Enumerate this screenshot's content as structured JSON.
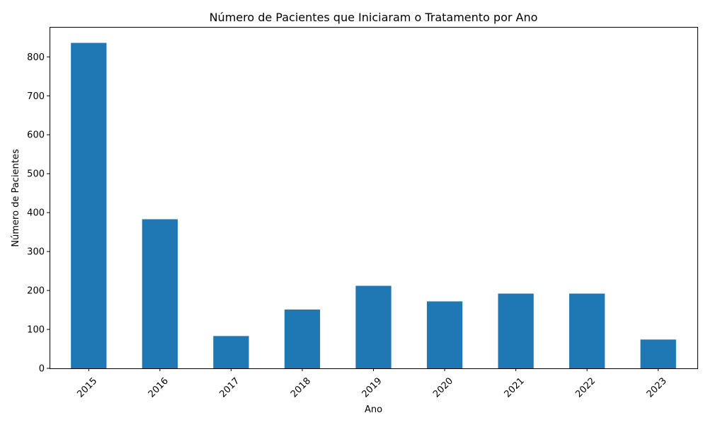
{
  "chart_data": {
    "type": "bar",
    "title": "Número de Pacientes que Iniciaram o Tratamento por Ano",
    "xlabel": "Ano",
    "ylabel": "Número de Pacientes",
    "categories": [
      "2015",
      "2016",
      "2017",
      "2018",
      "2019",
      "2020",
      "2021",
      "2022",
      "2023"
    ],
    "values": [
      836,
      383,
      83,
      151,
      212,
      172,
      192,
      192,
      74
    ],
    "ylim": [
      0,
      877
    ],
    "yticks": [
      "0",
      "100",
      "200",
      "300",
      "400",
      "500",
      "600",
      "700",
      "800"
    ],
    "xtick_rotation": 45,
    "grid": false,
    "legend": "none",
    "colors": {
      "bar": "#1f77b4",
      "axis": "#000000"
    }
  }
}
